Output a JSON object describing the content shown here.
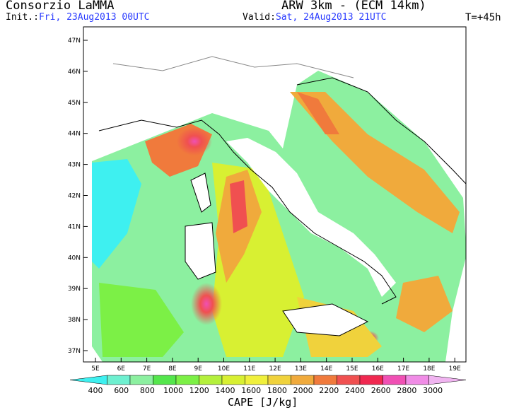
{
  "header": {
    "org": "Consorzio LaMMA",
    "model": "ARW 3km - (ECM 14km)",
    "init_label": "Init.:",
    "init_value": "Fri, 23Aug2013 00UTC",
    "valid_label": "Valid:",
    "valid_value": "Sat, 24Aug2013 21UTC",
    "lead_time": "T=+45h"
  },
  "axes": {
    "lat_ticks": [
      "47N",
      "46N",
      "45N",
      "44N",
      "43N",
      "42N",
      "41N",
      "40N",
      "39N",
      "38N",
      "37N"
    ],
    "lon_ticks": [
      "5E",
      "6E",
      "7E",
      "8E",
      "9E",
      "10E",
      "11E",
      "12E",
      "13E",
      "14E",
      "15E",
      "16E",
      "17E",
      "18E",
      "19E"
    ]
  },
  "colorbar": {
    "title": "CAPE [J/kg]",
    "labels": [
      "400",
      "600",
      "800",
      "1000",
      "1200",
      "1400",
      "1600",
      "1800",
      "2000",
      "2200",
      "2400",
      "2600",
      "2800",
      "3000"
    ],
    "colors": [
      "#3ef0f0",
      "#6ef0d0",
      "#8cf0a0",
      "#54e64c",
      "#7cf046",
      "#b4f03c",
      "#d8f032",
      "#f0f03c",
      "#f0d23c",
      "#f0aa3c",
      "#f07a3c",
      "#f05050",
      "#f02850",
      "#f050b4",
      "#f08ce6",
      "#f0b4f0"
    ]
  }
}
